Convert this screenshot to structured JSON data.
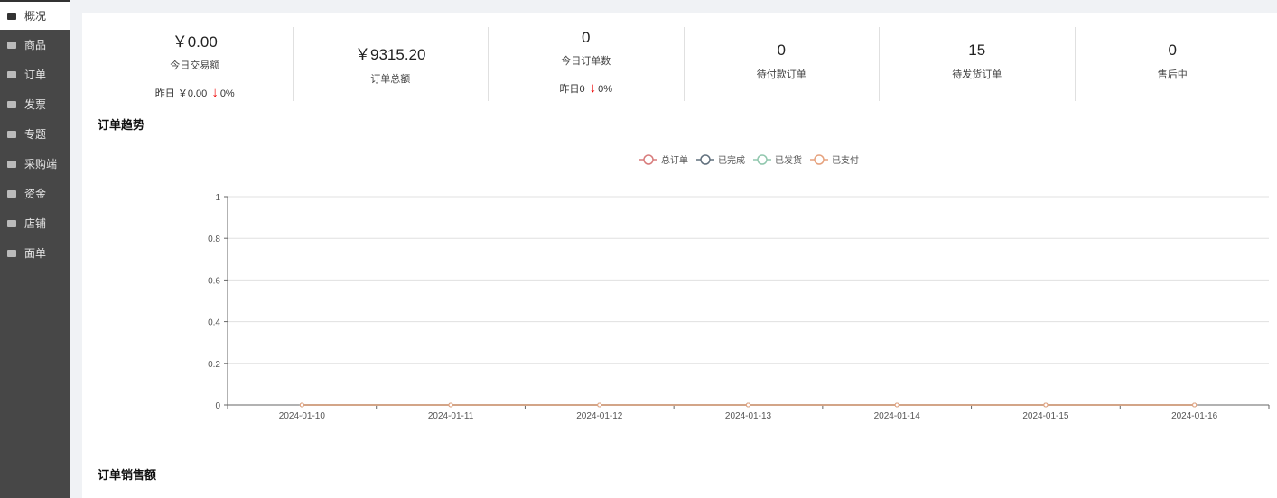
{
  "sidebar": {
    "items": [
      {
        "label": "概况",
        "icon": "monitor-icon",
        "active": true
      },
      {
        "label": "商品",
        "icon": "bag-icon"
      },
      {
        "label": "订单",
        "icon": "clipboard-icon"
      },
      {
        "label": "发票",
        "icon": "briefcase-icon"
      },
      {
        "label": "专题",
        "icon": "briefcase-icon"
      },
      {
        "label": "采购端",
        "icon": "briefcase-icon"
      },
      {
        "label": "资金",
        "icon": "briefcase-icon"
      },
      {
        "label": "店铺",
        "icon": "store-icon"
      },
      {
        "label": "面单",
        "icon": "printer-icon"
      }
    ]
  },
  "stats": [
    {
      "value": "￥0.00",
      "label": "今日交易额",
      "sub_prefix": "昨日 ￥0.00",
      "sub_pct": "0%"
    },
    {
      "value": "￥9315.20",
      "label": "订单总额"
    },
    {
      "value": "0",
      "label": "今日订单数",
      "sub_prefix": "昨日0",
      "sub_pct": "0%"
    },
    {
      "value": "0",
      "label": "待付款订单"
    },
    {
      "value": "15",
      "label": "待发货订单"
    },
    {
      "value": "0",
      "label": "售后中"
    }
  ],
  "sections": {
    "trend": "订单趋势",
    "sales": "订单销售额"
  },
  "chart_data": {
    "type": "line",
    "categories": [
      "2024-01-10",
      "2024-01-11",
      "2024-01-12",
      "2024-01-13",
      "2024-01-14",
      "2024-01-15",
      "2024-01-16"
    ],
    "series": [
      {
        "name": "总订单",
        "color": "#d87c7c",
        "values": [
          0,
          0,
          0,
          0,
          0,
          0,
          0
        ]
      },
      {
        "name": "已完成",
        "color": "#61707d",
        "values": [
          0,
          0,
          0,
          0,
          0,
          0,
          0
        ]
      },
      {
        "name": "已发货",
        "color": "#91c7ae",
        "values": [
          0,
          0,
          0,
          0,
          0,
          0,
          0
        ]
      },
      {
        "name": "已支付",
        "color": "#e6a27e",
        "values": [
          0,
          0,
          0,
          0,
          0,
          0,
          0
        ]
      }
    ],
    "ylim": [
      0,
      1
    ],
    "yticks": [
      "0",
      "0.2",
      "0.4",
      "0.6",
      "0.8",
      "1"
    ],
    "grid": true,
    "legend": "top-center"
  }
}
